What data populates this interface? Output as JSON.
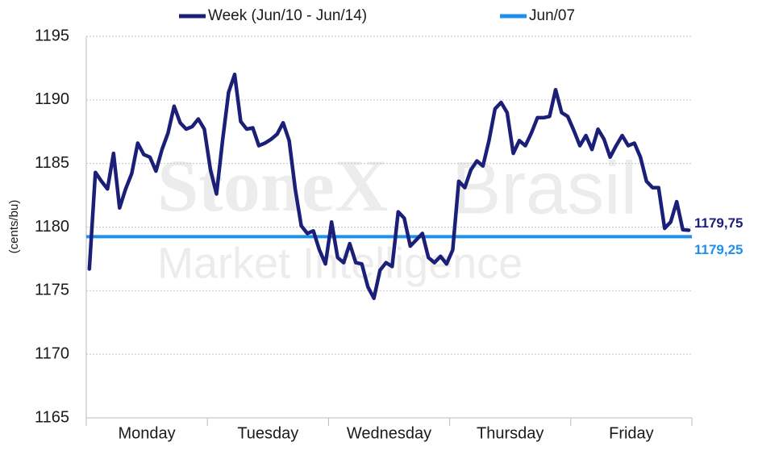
{
  "chart_data": {
    "type": "line",
    "ylabel": "(cents/bu)",
    "watermark": [
      "StoneX",
      "Brasil",
      "Market Intelligence"
    ],
    "categories": [
      null,
      null,
      null,
      null,
      null,
      null,
      null,
      null,
      null,
      null,
      "Monday",
      null,
      null,
      null,
      null,
      null,
      null,
      null,
      null,
      null,
      null,
      null,
      null,
      null,
      null,
      null,
      null,
      null,
      null,
      null,
      "Tuesday",
      null,
      null,
      null,
      null,
      null,
      null,
      null,
      null,
      null,
      null,
      null,
      null,
      null,
      null,
      null,
      null,
      null,
      null,
      null,
      "Wednesday",
      null,
      null,
      null,
      null,
      null,
      null,
      null,
      null,
      null,
      null,
      null,
      null,
      null,
      null,
      null,
      null,
      null,
      null,
      null,
      "Thursday",
      null,
      null,
      null,
      null,
      null,
      null,
      null,
      null,
      null,
      null,
      null,
      null,
      null,
      null,
      null,
      null,
      null,
      null,
      null,
      "Friday",
      null,
      null,
      null,
      null,
      null,
      null,
      null,
      null,
      null
    ],
    "series": [
      {
        "name": "Week (Jun/10 - Jun/14)",
        "color": "#1b1f78",
        "values": [
          1176.7,
          1184.3,
          1183.6,
          1183,
          1185.8,
          1181.5,
          1183,
          1184.2,
          1186.6,
          1185.7,
          1185.5,
          1184.4,
          1186.1,
          1187.4,
          1189.5,
          1188.2,
          1187.7,
          1187.9,
          1188.5,
          1187.7,
          1184.5,
          1182.6,
          1186.8,
          1190.6,
          1192,
          1188.3,
          1187.7,
          1187.8,
          1186.4,
          1186.6,
          1186.9,
          1187.3,
          1188.2,
          1186.8,
          1183,
          1180.1,
          1179.5,
          1179.7,
          1178.2,
          1177.1,
          1180.4,
          1177.6,
          1177.2,
          1178.7,
          1177.2,
          1177.1,
          1175.3,
          1174.4,
          1176.6,
          1177.2,
          1176.9,
          1181.2,
          1180.7,
          1178.5,
          1179,
          1179.5,
          1177.6,
          1177.2,
          1177.7,
          1177.1,
          1178.2,
          1183.6,
          1183.1,
          1184.5,
          1185.2,
          1184.8,
          1186.8,
          1189.3,
          1189.8,
          1189,
          1185.8,
          1186.8,
          1186.4,
          1187.4,
          1188.6,
          1188.6,
          1188.7,
          1190.8,
          1189,
          1188.7,
          1187.6,
          1186.4,
          1187.2,
          1186.1,
          1187.7,
          1186.9,
          1185.5,
          1186.4,
          1187.2,
          1186.4,
          1186.6,
          1185.5,
          1183.6,
          1183.1,
          1183.1,
          1179.9,
          1180.4,
          1182,
          1179.8,
          1179.75
        ],
        "value_labels": [
          null,
          null,
          null,
          null,
          null,
          null,
          null,
          null,
          null,
          null,
          null,
          null,
          null,
          null,
          null,
          null,
          null,
          null,
          null,
          null,
          null,
          null,
          null,
          null,
          null,
          null,
          null,
          null,
          null,
          null,
          null,
          null,
          null,
          null,
          null,
          null,
          null,
          null,
          null,
          null,
          null,
          null,
          null,
          null,
          null,
          null,
          null,
          null,
          null,
          null,
          null,
          null,
          null,
          null,
          null,
          null,
          null,
          null,
          null,
          null,
          null,
          null,
          null,
          null,
          null,
          null,
          null,
          null,
          null,
          null,
          null,
          null,
          null,
          null,
          null,
          null,
          null,
          null,
          null,
          null,
          null,
          null,
          null,
          null,
          null,
          null,
          null,
          null,
          null,
          null,
          null,
          null,
          null,
          null,
          null,
          null,
          null,
          null,
          null,
          "1179,75"
        ]
      }
    ],
    "reference_line": {
      "name": "Jun/07",
      "color": "#1e8ff0",
      "value": 1179.25,
      "value_label": "1179,25"
    },
    "ylim": [
      1165,
      1195
    ],
    "yticks": [
      1165,
      1170,
      1175,
      1180,
      1185,
      1190,
      1195
    ],
    "grid": true
  }
}
